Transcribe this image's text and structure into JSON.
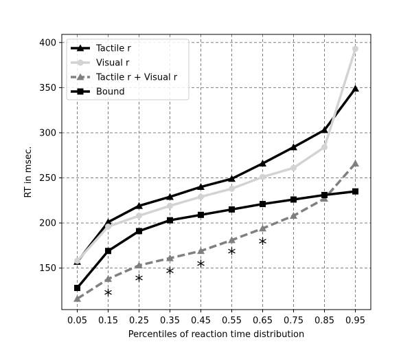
{
  "chart_data": {
    "type": "line",
    "title": "",
    "xlabel": "Percentiles of reaction time distribution",
    "ylabel": "RT in msec.",
    "x": [
      0.05,
      0.15,
      0.25,
      0.35,
      0.45,
      0.55,
      0.65,
      0.75,
      0.85,
      0.95
    ],
    "x_tick_labels": [
      "0.05",
      "0.15",
      "0.25",
      "0.35",
      "0.45",
      "0.55",
      "0.65",
      "0.75",
      "0.85",
      "0.95"
    ],
    "y_ticks": [
      150,
      200,
      250,
      300,
      350,
      400
    ],
    "y_tick_labels": [
      "150",
      "200",
      "250",
      "300",
      "350",
      "400"
    ],
    "xlim": [
      0.0,
      1.0
    ],
    "ylim": [
      104,
      409
    ],
    "grid": true,
    "legend_position": "top-left",
    "series": [
      {
        "name": "Tactile r",
        "color": "#000000",
        "marker": "triangle",
        "dash": "solid",
        "values": [
          157,
          201,
          219,
          229,
          240,
          249,
          266,
          284,
          303,
          349
        ]
      },
      {
        "name": "Visual r",
        "color": "#d3d3d3",
        "marker": "circle",
        "dash": "solid",
        "values": [
          158,
          196,
          208,
          219,
          229,
          238,
          251,
          261,
          284,
          393
        ]
      },
      {
        "name": "Tactile r + Visual r",
        "color": "#808080",
        "marker": "triangle",
        "dash": "dashed",
        "values": [
          116,
          138,
          153,
          161,
          169,
          181,
          194,
          208,
          227,
          266
        ]
      },
      {
        "name": "Bound",
        "color": "#000000",
        "marker": "square",
        "dash": "solid",
        "values": [
          128,
          169,
          191,
          203,
          209,
          215,
          221,
          226,
          231,
          235
        ]
      }
    ],
    "annotations": [
      {
        "text": "*",
        "x": 0.15,
        "y": 121
      },
      {
        "text": "*",
        "x": 0.25,
        "y": 137
      },
      {
        "text": "*",
        "x": 0.35,
        "y": 145
      },
      {
        "text": "*",
        "x": 0.45,
        "y": 153
      },
      {
        "text": "*",
        "x": 0.55,
        "y": 167
      },
      {
        "text": "*",
        "x": 0.65,
        "y": 178
      }
    ]
  }
}
